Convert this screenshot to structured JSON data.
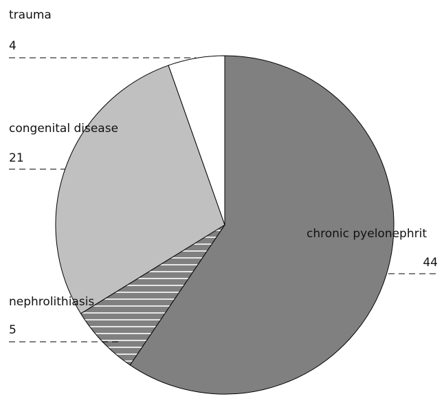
{
  "chart_data": {
    "type": "pie",
    "slices": [
      {
        "label": "chronic pyelonephrit",
        "value": 44,
        "color": "#808080",
        "pattern": "none"
      },
      {
        "label": "nephrolithiasis",
        "value": 5,
        "color": "#808080",
        "pattern": "horizontal-hatch"
      },
      {
        "label": "congenital disease",
        "value": 21,
        "color": "#c0c0c0",
        "pattern": "none"
      },
      {
        "label": "trauma",
        "value": 4,
        "color": "#ffffff",
        "pattern": "none"
      }
    ],
    "start_angle_deg": 0,
    "direction": "clockwise",
    "legend": "none"
  }
}
